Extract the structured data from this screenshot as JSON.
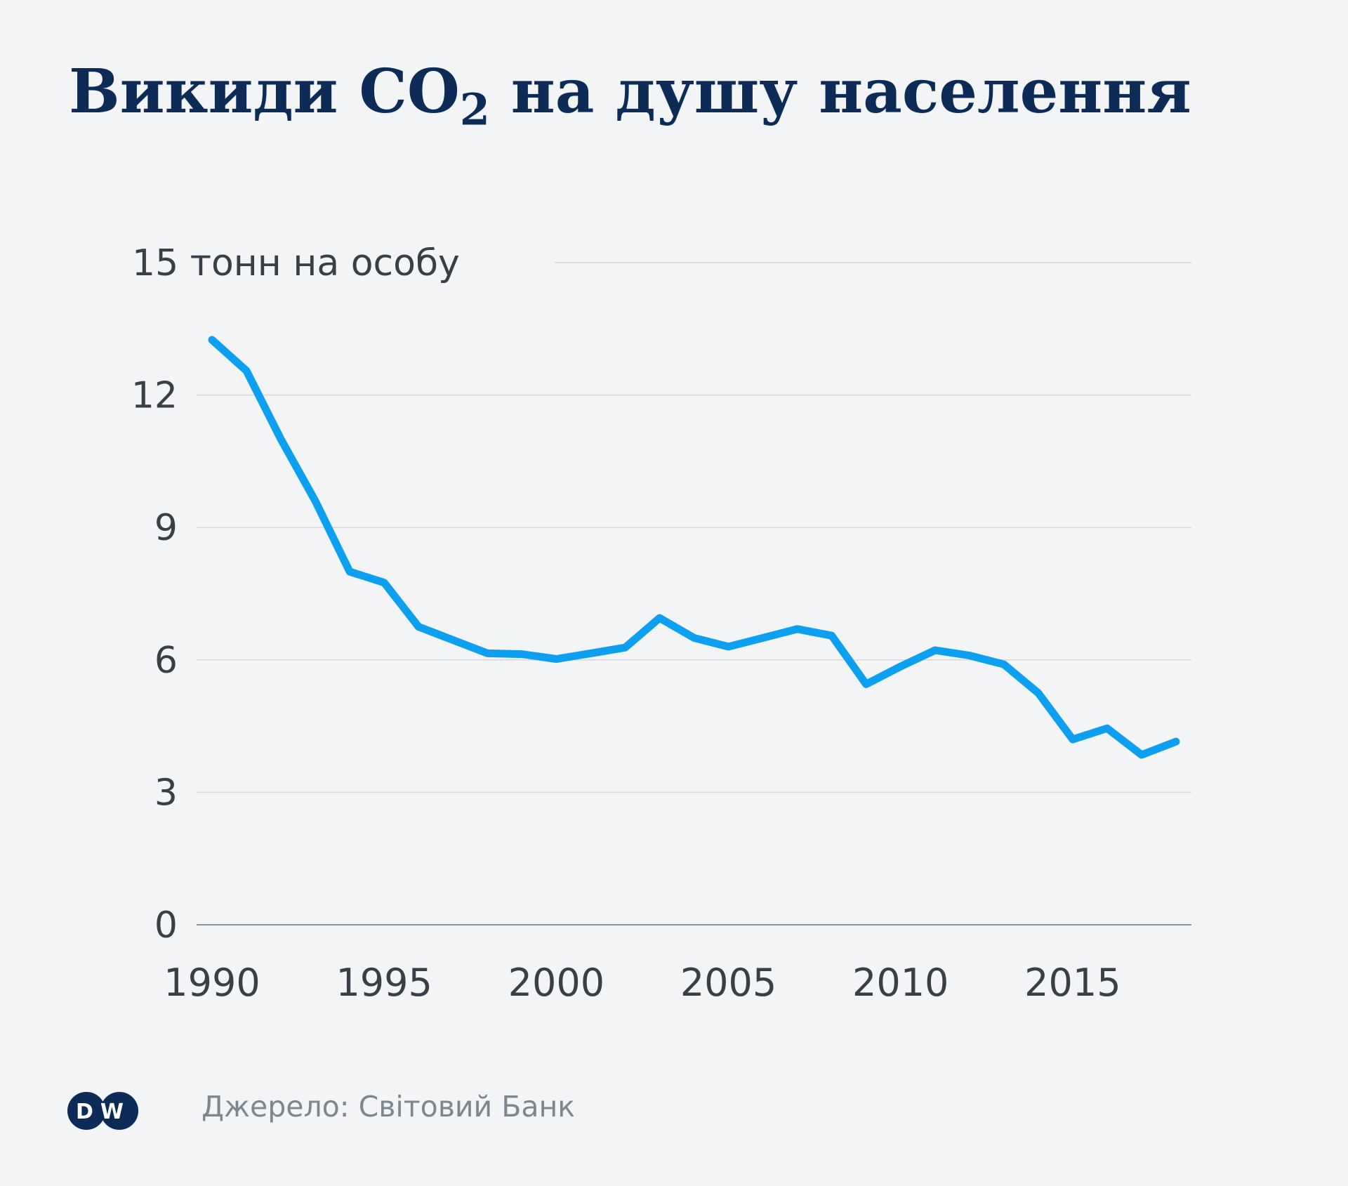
{
  "title": {
    "main": "Викиди CO",
    "sub": "2",
    "rest": " на душу населення"
  },
  "source": "Джерело: Світовий Банк",
  "logo": {
    "text": "DW",
    "icon": "dw-logo-icon"
  },
  "colors": {
    "line": "#0ea0f0",
    "title": "#0c2b57",
    "background": "#f2f4f6",
    "grid": "#d5d8dc",
    "text": "#3a3f46",
    "source": "#7e868e"
  },
  "chart_data": {
    "type": "line",
    "title": "Викиди CO2 на душу населення",
    "ylabel": "тонн на особу",
    "ylim": [
      0,
      15
    ],
    "xlim": [
      1990,
      2018
    ],
    "y_ticks": [
      {
        "value": 15,
        "label": "15 тонн на особу"
      },
      {
        "value": 12,
        "label": "12"
      },
      {
        "value": 9,
        "label": "9"
      },
      {
        "value": 6,
        "label": "6"
      },
      {
        "value": 3,
        "label": "3"
      },
      {
        "value": 0,
        "label": "0"
      }
    ],
    "x_ticks": [
      {
        "value": 1990,
        "label": "1990"
      },
      {
        "value": 1995,
        "label": "1995"
      },
      {
        "value": 2000,
        "label": "2000"
      },
      {
        "value": 2005,
        "label": "2005"
      },
      {
        "value": 2010,
        "label": "2010"
      },
      {
        "value": 2015,
        "label": "2015"
      }
    ],
    "grid": true,
    "legend": "none",
    "x": [
      1990,
      1991,
      1992,
      1993,
      1994,
      1995,
      1996,
      1997,
      1998,
      1999,
      2000,
      2001,
      2002,
      2003,
      2004,
      2005,
      2006,
      2007,
      2008,
      2009,
      2010,
      2011,
      2012,
      2013,
      2014,
      2015,
      2016,
      2017,
      2018
    ],
    "values": [
      13.25,
      12.55,
      11.0,
      9.6,
      8.0,
      7.75,
      6.75,
      6.45,
      6.15,
      6.13,
      6.02,
      6.15,
      6.28,
      6.95,
      6.5,
      6.3,
      6.5,
      6.7,
      6.55,
      5.45,
      5.85,
      6.22,
      6.1,
      5.9,
      5.25,
      4.2,
      4.45,
      3.85,
      4.15
    ]
  }
}
